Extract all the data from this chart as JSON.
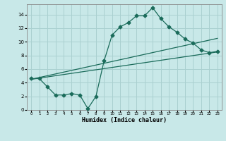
{
  "xlabel": "Humidex (Indice chaleur)",
  "ylabel": "",
  "bg_color": "#c8e8e8",
  "grid_color": "#aad0d0",
  "line_color": "#1a6b5a",
  "xlim": [
    -0.5,
    23.5
  ],
  "ylim": [
    0,
    15.5
  ],
  "xticks": [
    0,
    1,
    2,
    3,
    4,
    5,
    6,
    7,
    8,
    9,
    10,
    11,
    12,
    13,
    14,
    15,
    16,
    17,
    18,
    19,
    20,
    21,
    22,
    23
  ],
  "yticks": [
    0,
    2,
    4,
    6,
    8,
    10,
    12,
    14
  ],
  "line1_x": [
    0,
    1,
    2,
    3,
    4,
    5,
    6,
    7,
    8,
    9,
    10,
    11,
    12,
    13,
    14,
    15,
    16,
    17,
    18,
    19,
    20,
    21,
    22,
    23
  ],
  "line1_y": [
    4.6,
    4.6,
    3.4,
    2.2,
    2.2,
    2.4,
    2.2,
    0.2,
    2.0,
    7.2,
    11.0,
    12.2,
    12.8,
    13.8,
    13.8,
    15.0,
    13.4,
    12.2,
    11.4,
    10.4,
    9.8,
    8.8,
    8.4,
    8.6
  ],
  "line2_x": [
    0,
    23
  ],
  "line2_y": [
    4.5,
    8.5
  ],
  "line3_x": [
    0,
    23
  ],
  "line3_y": [
    4.5,
    10.5
  ]
}
